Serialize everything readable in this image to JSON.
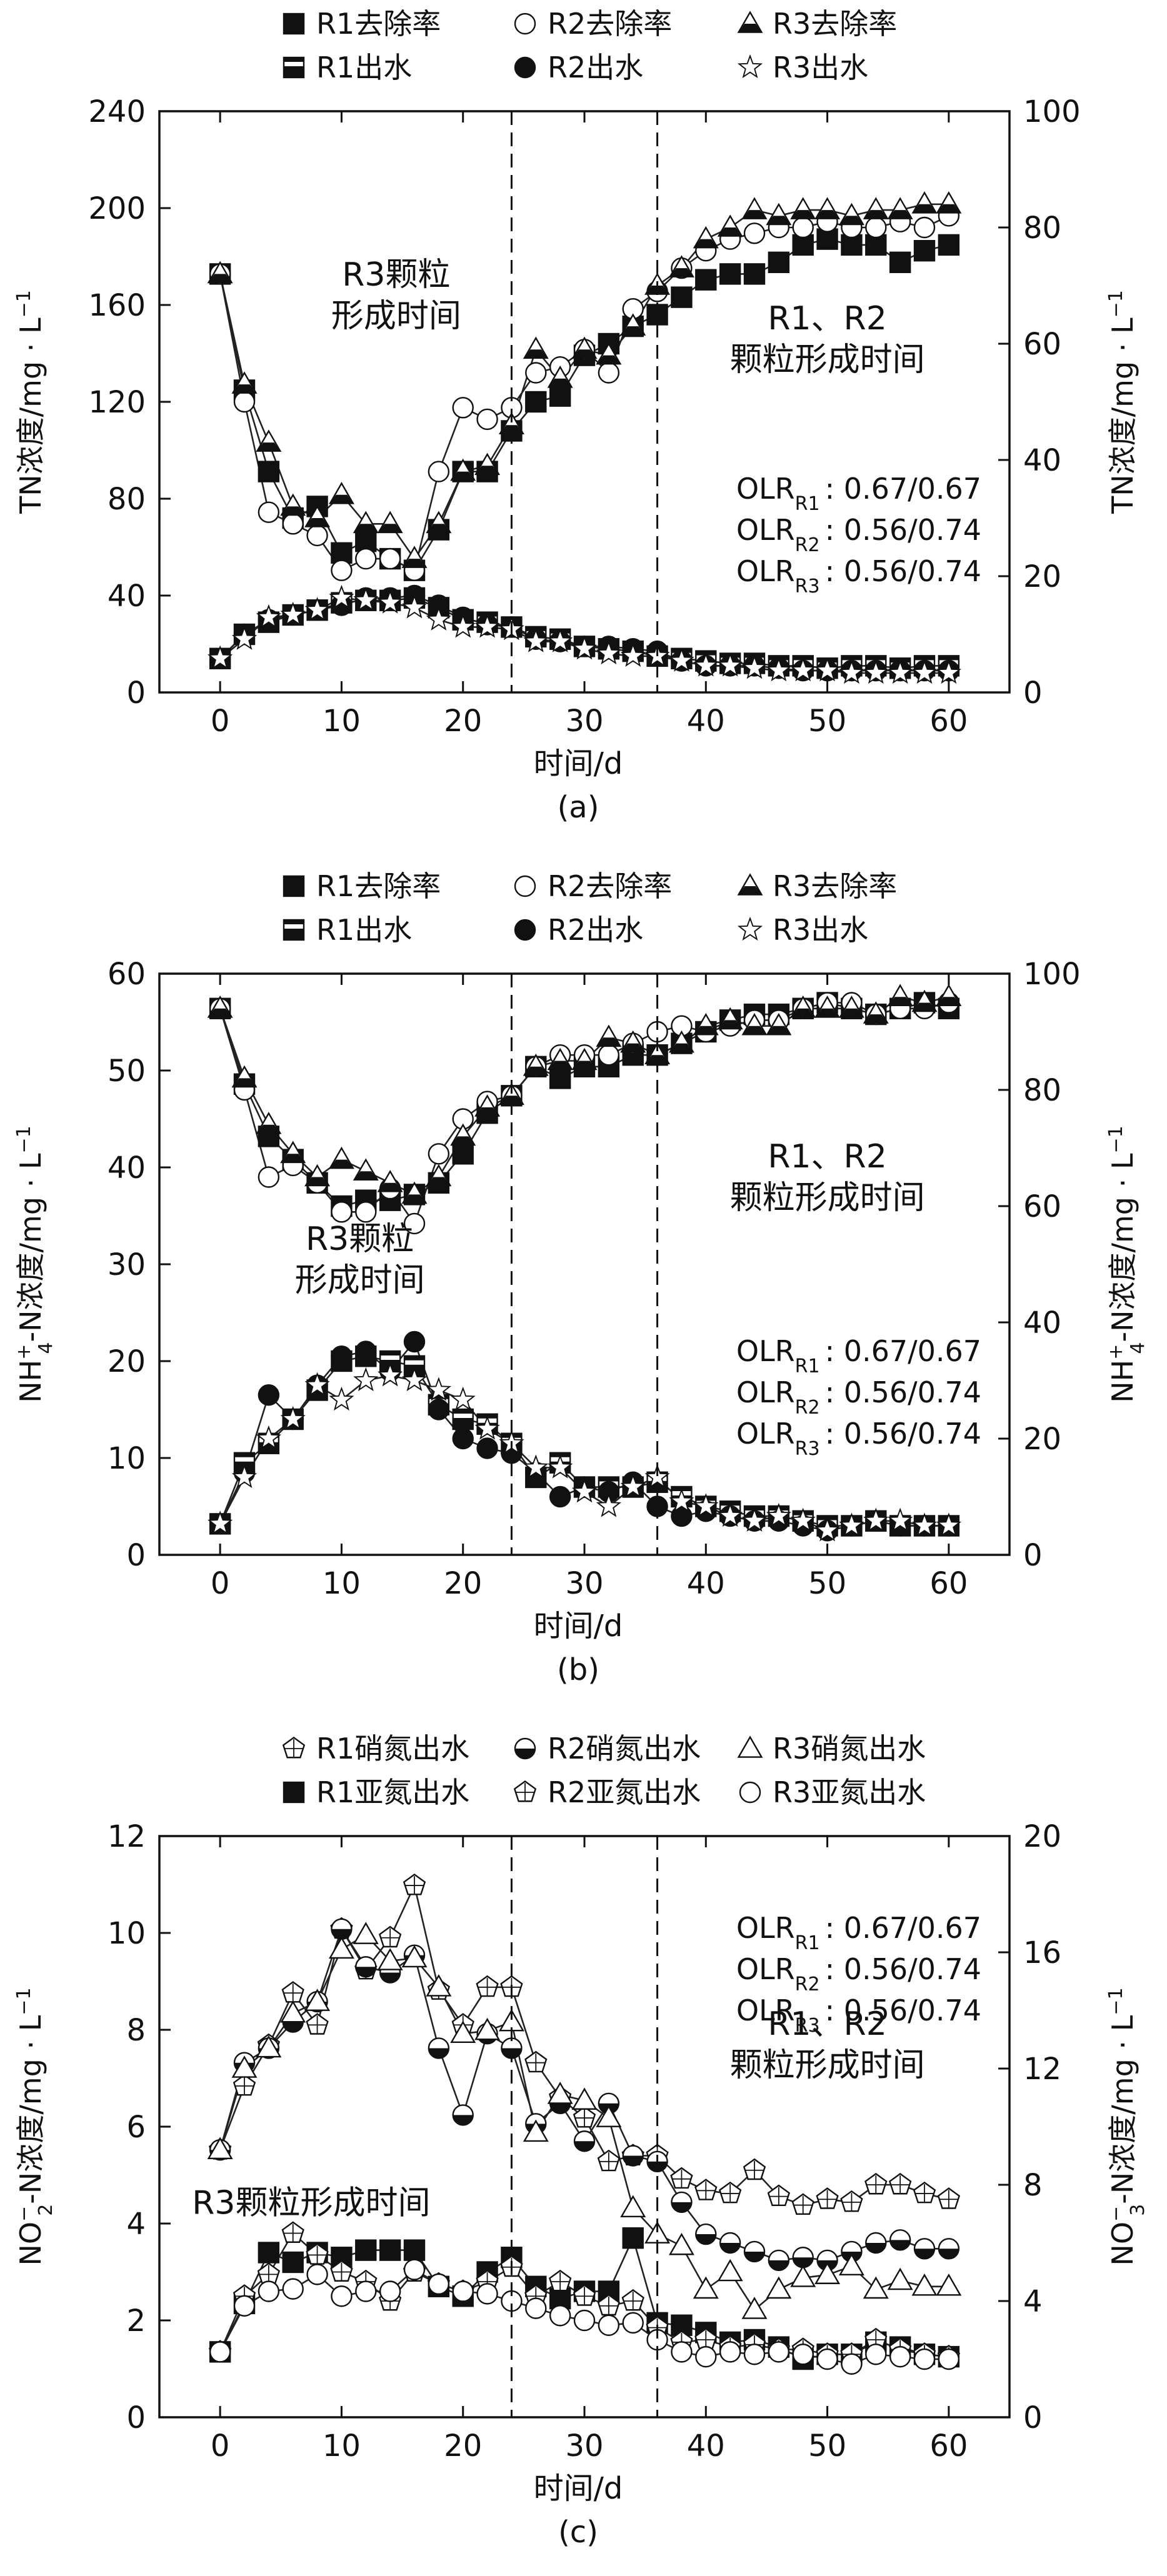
{
  "chart_data": [
    {
      "type": "line",
      "panel_label": "(a)",
      "xlabel": "时间/d",
      "ylabel": "TN浓度/mg · L",
      "ylabel_sup": "−1",
      "y2label": "TN浓度/mg · L",
      "y2label_sup": "−1",
      "xlim": [
        -5,
        65
      ],
      "ylim": [
        0,
        240
      ],
      "y2lim": [
        0,
        100
      ],
      "xticks": [
        0,
        10,
        20,
        30,
        40,
        50,
        60
      ],
      "yticks": [
        0,
        40,
        80,
        120,
        160,
        200,
        240
      ],
      "y2ticks": [
        0,
        20,
        40,
        60,
        80,
        100
      ],
      "vlines": [
        24,
        36
      ],
      "annotations": [
        {
          "lines": [
            "R3颗粒",
            "形成时间"
          ],
          "x": 14.5,
          "y": 168
        },
        {
          "lines": [
            "R1、R2",
            "颗粒形成时间"
          ],
          "x": 50,
          "y": 150
        }
      ],
      "olr": [
        {
          "label": "OLR",
          "sub": "R1",
          "value": "0.67/0.67"
        },
        {
          "label": "OLR",
          "sub": "R2",
          "value": "0.56/0.74"
        },
        {
          "label": "OLR",
          "sub": "R3",
          "value": "0.56/0.74"
        }
      ],
      "olr_pos": {
        "x": 42.5,
        "y": 80
      },
      "legend": [
        {
          "name": "R1去除率",
          "marker": "square"
        },
        {
          "name": "R2去除率",
          "marker": "circle-open"
        },
        {
          "name": "R3去除率",
          "marker": "triangle-half"
        },
        {
          "name": "R1出水",
          "marker": "square-half"
        },
        {
          "name": "R2出水",
          "marker": "circle"
        },
        {
          "name": "R3出水",
          "marker": "star"
        }
      ],
      "x": [
        0,
        2,
        4,
        6,
        8,
        10,
        12,
        14,
        16,
        18,
        20,
        22,
        24,
        26,
        28,
        30,
        32,
        34,
        36,
        38,
        40,
        42,
        44,
        46,
        48,
        50,
        52,
        54,
        56,
        58,
        60
      ],
      "series": [
        {
          "name": "R1去除率",
          "axis": "right",
          "marker": "square",
          "values": [
            72,
            52,
            38,
            30,
            32,
            24,
            26,
            23,
            21,
            28,
            38,
            38,
            45,
            50,
            51,
            58,
            60,
            63,
            65,
            68,
            71,
            72,
            72,
            74,
            77,
            78,
            77,
            77,
            74,
            76,
            77
          ]
        },
        {
          "name": "R2去除率",
          "axis": "right",
          "marker": "circle-open",
          "values": [
            72,
            50,
            31,
            29,
            27,
            21,
            23,
            23,
            21,
            38,
            49,
            47,
            49,
            55,
            56,
            59,
            55,
            66,
            69,
            73,
            76,
            78,
            79,
            80,
            80,
            81,
            80,
            80,
            81,
            80,
            82
          ]
        },
        {
          "name": "R3去除率",
          "axis": "right",
          "marker": "triangle-half",
          "values": [
            72,
            53,
            43,
            32,
            30,
            34,
            29,
            29,
            23,
            29,
            38,
            39,
            46,
            59,
            54,
            59,
            58,
            63,
            70,
            73,
            78,
            80,
            83,
            82,
            83,
            83,
            82,
            83,
            83,
            84,
            84
          ]
        },
        {
          "name": "R1出水",
          "axis": "left",
          "marker": "square-half",
          "values": [
            14,
            24,
            29,
            32,
            34,
            37,
            38,
            38,
            39,
            35,
            30,
            29,
            27,
            23,
            22,
            19,
            18,
            17,
            15,
            14,
            13,
            12,
            12,
            11,
            11,
            10,
            11,
            11,
            10,
            11,
            11
          ]
        },
        {
          "name": "R2出水",
          "axis": "left",
          "marker": "circle",
          "values": [
            14,
            24,
            30,
            32,
            34,
            36,
            39,
            39,
            40,
            36,
            31,
            28,
            27,
            22,
            21,
            19,
            19,
            18,
            17,
            13,
            11,
            11,
            11,
            10,
            9,
            9,
            9,
            9,
            9,
            9,
            9
          ]
        },
        {
          "name": "R3出水",
          "axis": "left",
          "marker": "star",
          "values": [
            14,
            22,
            31,
            32,
            34,
            39,
            38,
            37,
            35,
            30,
            27,
            27,
            26,
            21,
            21,
            18,
            16,
            15,
            15,
            13,
            11,
            11,
            10,
            9,
            9,
            9,
            8,
            8,
            8,
            8,
            8
          ]
        }
      ]
    },
    {
      "type": "line",
      "panel_label": "(b)",
      "xlabel": "时间/d",
      "ylabel": "NH4+-N浓度/mg · L−1",
      "y2label": "NH4+-N浓度/mg · L−1",
      "xlim": [
        -5,
        65
      ],
      "ylim": [
        0,
        60
      ],
      "y2lim": [
        0,
        100
      ],
      "xticks": [
        0,
        10,
        20,
        30,
        40,
        50,
        60
      ],
      "yticks": [
        0,
        10,
        20,
        30,
        40,
        50,
        60
      ],
      "y2ticks": [
        0,
        20,
        40,
        60,
        80,
        100
      ],
      "vlines": [
        24,
        36
      ],
      "annotations": [
        {
          "lines": [
            "R3颗粒",
            "形成时间"
          ],
          "x": 11.5,
          "y": 31.5
        },
        {
          "lines": [
            "R1、R2",
            "颗粒形成时间"
          ],
          "x": 50,
          "y": 40
        }
      ],
      "olr": [
        {
          "label": "OLR",
          "sub": "R1",
          "value": "0.67/0.67"
        },
        {
          "label": "OLR",
          "sub": "R2",
          "value": "0.56/0.74"
        },
        {
          "label": "OLR",
          "sub": "R3",
          "value": "0.56/0.74"
        }
      ],
      "olr_pos": {
        "x": 42.5,
        "y": 20
      },
      "legend": [
        {
          "name": "R1去除率",
          "marker": "square"
        },
        {
          "name": "R2去除率",
          "marker": "circle-open"
        },
        {
          "name": "R3去除率",
          "marker": "triangle-half"
        },
        {
          "name": "R1出水",
          "marker": "square-half"
        },
        {
          "name": "R2出水",
          "marker": "circle"
        },
        {
          "name": "R3出水",
          "marker": "star"
        }
      ],
      "x": [
        0,
        2,
        4,
        6,
        8,
        10,
        12,
        14,
        16,
        18,
        20,
        22,
        24,
        26,
        28,
        30,
        32,
        34,
        36,
        38,
        40,
        42,
        44,
        46,
        48,
        50,
        52,
        54,
        56,
        58,
        60
      ],
      "series": [
        {
          "name": "R1去除率",
          "axis": "right",
          "marker": "square",
          "values": [
            94,
            81,
            72,
            68,
            64,
            60,
            61,
            61,
            62,
            64,
            69,
            76,
            79,
            84,
            82,
            84,
            84,
            86,
            86,
            88,
            90,
            92,
            93,
            93,
            94,
            95,
            94,
            93,
            94,
            95,
            94
          ]
        },
        {
          "name": "R2去除率",
          "axis": "right",
          "marker": "circle-open",
          "values": [
            94,
            80,
            65,
            67,
            64,
            59,
            59,
            63,
            57,
            69,
            75,
            78,
            79,
            84,
            86,
            86,
            86,
            88,
            90,
            91,
            90,
            91,
            92,
            92,
            94,
            95,
            95,
            93,
            94,
            94,
            95
          ]
        },
        {
          "name": "R3去除率",
          "axis": "right",
          "marker": "triangle-half",
          "values": [
            94,
            82,
            74,
            69,
            65,
            68,
            66,
            64,
            62,
            65,
            72,
            77,
            79,
            84,
            85,
            85,
            89,
            88,
            86,
            88,
            91,
            92,
            91,
            91,
            94,
            94,
            94,
            93,
            96,
            95,
            96
          ]
        },
        {
          "name": "R1出水",
          "axis": "left",
          "marker": "square-half",
          "values": [
            3.2,
            9.5,
            11.5,
            14,
            17,
            20,
            20.5,
            20,
            19.5,
            15.5,
            14,
            13.5,
            11.5,
            8,
            9.5,
            7,
            7,
            7,
            7.5,
            6,
            5,
            4.5,
            4,
            4,
            3.5,
            3,
            3,
            3.5,
            3,
            3,
            3
          ]
        },
        {
          "name": "R2出水",
          "axis": "left",
          "marker": "circle",
          "values": [
            3.2,
            8.5,
            16.5,
            14,
            17.5,
            20.5,
            21,
            19,
            22,
            15,
            12,
            11,
            10.5,
            8.5,
            6,
            7,
            6.5,
            7.5,
            5,
            4,
            4.5,
            4,
            3.5,
            3.5,
            3,
            2.5,
            3,
            3.5,
            3,
            3,
            3
          ]
        },
        {
          "name": "R3出水",
          "axis": "left",
          "marker": "star",
          "values": [
            3.2,
            8,
            12,
            14,
            17.5,
            16,
            18,
            18.5,
            18,
            17,
            16,
            13,
            11.5,
            9,
            9,
            6.5,
            5,
            7,
            8,
            5.5,
            5,
            4,
            3.5,
            4,
            3.5,
            2.5,
            3,
            3.5,
            3.5,
            3,
            3
          ]
        }
      ]
    },
    {
      "type": "line",
      "panel_label": "(c)",
      "xlabel": "时间/d",
      "ylabel": "NO2−-N浓度/mg · L−1",
      "y2label": "NO3−-N浓度/mg · L−1",
      "xlim": [
        -5,
        65
      ],
      "ylim": [
        0,
        12
      ],
      "y2lim": [
        0,
        20
      ],
      "xticks": [
        0,
        10,
        20,
        30,
        40,
        50,
        60
      ],
      "yticks": [
        0,
        2,
        4,
        6,
        8,
        10,
        12
      ],
      "y2ticks": [
        0,
        4,
        8,
        12,
        16,
        20
      ],
      "vlines": [
        24,
        36
      ],
      "annotations": [
        {
          "lines": [
            "R3颗粒形成时间"
          ],
          "x": 7.5,
          "y": 4.2
        },
        {
          "lines": [
            "R1、R2",
            "颗粒形成时间"
          ],
          "x": 50,
          "y": 7.9
        }
      ],
      "olr": [
        {
          "label": "OLR",
          "sub": "R1",
          "value": "0.67/0.67"
        },
        {
          "label": "OLR",
          "sub": "R2",
          "value": "0.56/0.74"
        },
        {
          "label": "OLR",
          "sub": "R3",
          "value": "0.56/0.74"
        }
      ],
      "olr_pos": {
        "x": 42.5,
        "y": 9.9
      },
      "legend": [
        {
          "name": "R1硝氮出水",
          "marker": "pentagon-cross"
        },
        {
          "name": "R2硝氮出水",
          "marker": "circle-half"
        },
        {
          "name": "R3硝氮出水",
          "marker": "triangle-open"
        },
        {
          "name": "R1亚氮出水",
          "marker": "square"
        },
        {
          "name": "R2亚氮出水",
          "marker": "pentagon-cross"
        },
        {
          "name": "R3亚氮出水",
          "marker": "circle-open"
        }
      ],
      "x": [
        0,
        2,
        4,
        6,
        8,
        10,
        12,
        14,
        16,
        18,
        20,
        22,
        24,
        26,
        28,
        30,
        32,
        34,
        36,
        38,
        40,
        42,
        44,
        46,
        48,
        50,
        52,
        54,
        56,
        58,
        60
      ],
      "series": [
        {
          "name": "R1硝氮出水",
          "axis": "right",
          "marker": "pentagon-cross",
          "values": [
            9.2,
            11.4,
            12.8,
            14.6,
            13.5,
            16.8,
            15.4,
            16.5,
            18.3,
            14.7,
            13.5,
            14.8,
            14.8,
            12.2,
            11.0,
            10.3,
            8.8,
            9.0,
            9.0,
            8.2,
            7.8,
            7.7,
            8.5,
            7.6,
            7.3,
            7.5,
            7.4,
            8.0,
            8.0,
            7.7,
            7.5
          ]
        },
        {
          "name": "R2硝氮出水",
          "axis": "right",
          "marker": "circle-half",
          "values": [
            9.2,
            12.2,
            12.7,
            13.6,
            14.3,
            16.8,
            15.5,
            15.3,
            15.9,
            12.7,
            10.4,
            13.2,
            12.7,
            10.1,
            10.8,
            9.5,
            10.8,
            9.0,
            8.8,
            7.4,
            6.3,
            6.0,
            5.7,
            5.4,
            5.5,
            5.4,
            5.7,
            6.0,
            6.1,
            5.8,
            5.8
          ]
        },
        {
          "name": "R3硝氮出水",
          "axis": "right",
          "marker": "triangle-open",
          "values": [
            9.2,
            12.0,
            12.7,
            13.9,
            14.3,
            16.1,
            16.6,
            15.7,
            15.8,
            14.8,
            13.2,
            13.3,
            13.6,
            9.8,
            11.1,
            10.9,
            10.3,
            7.2,
            6.3,
            5.9,
            4.4,
            5.0,
            3.7,
            4.4,
            4.8,
            4.9,
            5.2,
            4.4,
            4.7,
            4.5,
            4.5
          ]
        },
        {
          "name": "R1亚氮出水",
          "axis": "left",
          "marker": "square",
          "values": [
            1.35,
            2.35,
            3.4,
            3.2,
            3.4,
            3.3,
            3.45,
            3.45,
            3.45,
            2.7,
            2.5,
            3.0,
            3.3,
            2.7,
            2.45,
            2.6,
            2.6,
            3.7,
            1.95,
            1.9,
            1.75,
            1.55,
            1.6,
            1.45,
            1.2,
            1.3,
            1.3,
            1.55,
            1.45,
            1.3,
            1.25
          ]
        },
        {
          "name": "R2亚氮出水",
          "axis": "left",
          "marker": "pentagon-cross",
          "values": [
            1.35,
            2.5,
            2.95,
            3.8,
            3.35,
            3.0,
            2.8,
            2.4,
            3.0,
            2.75,
            2.6,
            2.8,
            3.1,
            2.5,
            2.8,
            2.5,
            2.3,
            2.4,
            1.85,
            1.55,
            1.6,
            1.45,
            1.5,
            1.4,
            1.4,
            1.3,
            1.3,
            1.6,
            1.4,
            1.3,
            1.25
          ]
        },
        {
          "name": "R3亚氮出水",
          "axis": "left",
          "marker": "circle-open",
          "values": [
            1.35,
            2.3,
            2.6,
            2.65,
            2.95,
            2.5,
            2.6,
            2.6,
            3.05,
            2.75,
            2.6,
            2.55,
            2.4,
            2.25,
            2.1,
            2.0,
            1.9,
            1.95,
            1.6,
            1.35,
            1.25,
            1.35,
            1.3,
            1.35,
            1.3,
            1.2,
            1.1,
            1.3,
            1.25,
            1.2,
            1.2
          ]
        }
      ]
    }
  ]
}
